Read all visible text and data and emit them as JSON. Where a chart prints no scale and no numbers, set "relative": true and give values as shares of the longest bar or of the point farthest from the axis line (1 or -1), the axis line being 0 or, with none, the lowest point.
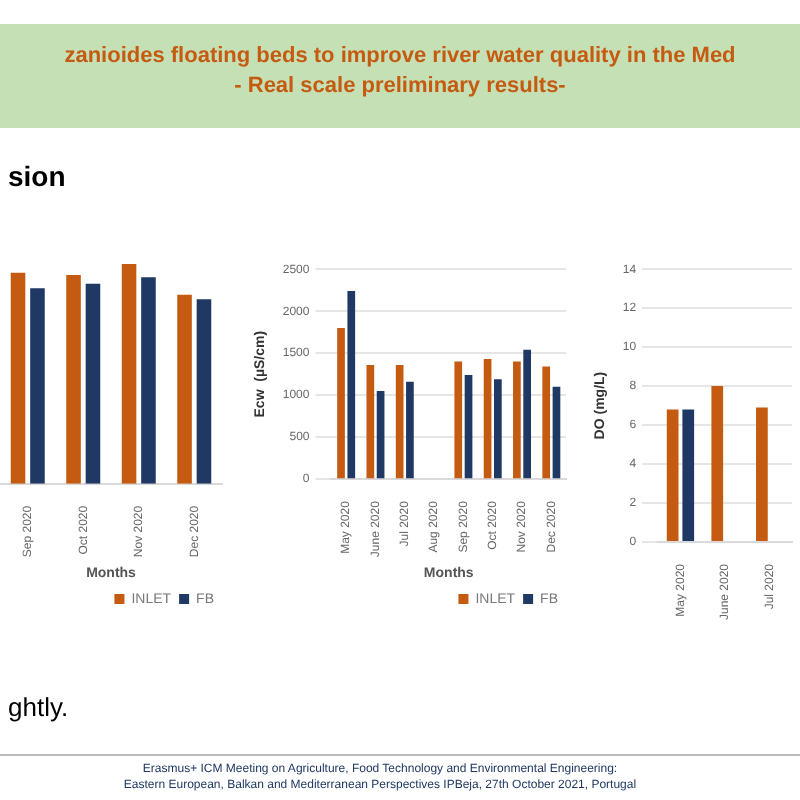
{
  "chart_data": [
    {
      "type": "bar",
      "xlabel": "Months",
      "relative": true,
      "legend": "bottom",
      "categories": [
        "Sep 2020",
        "Oct 2020",
        "Nov 2020",
        "Dec 2020"
      ],
      "series": [
        {
          "name": "INLET",
          "color": "#c55a11",
          "values": [
            0.96,
            0.95,
            1,
            0.86
          ]
        },
        {
          "name": "FB",
          "color": "#1f3864",
          "values": [
            0.89,
            0.91,
            0.94,
            0.84
          ]
        }
      ],
      "annotations": [
        "sion",
        "ghtly."
      ]
    },
    {
      "type": "bar",
      "title": "zanioides floating beds to improve river water quality in the Med",
      "subtitle": "- Real scale preliminary results-",
      "xlabel": "Months",
      "ylabel": "Ecw  (µS/cm)",
      "ylim": [
        0,
        2500
      ],
      "yticks": [
        0,
        500,
        1000,
        1500,
        2000,
        2500
      ],
      "grid": "y",
      "legend": "bottom",
      "categories": [
        "May 2020",
        "June 2020",
        "Jul 2020",
        "Aug 2020",
        "Sep 2020",
        "Oct 2020",
        "Nov 2020",
        "Dec 2020"
      ],
      "series": [
        {
          "name": "INLET",
          "color": "#c55a11",
          "values": [
            1800,
            1360,
            1360,
            null,
            1400,
            1430,
            1400,
            1340
          ]
        },
        {
          "name": "FB",
          "color": "#1f3864",
          "values": [
            2240,
            1050,
            1160,
            null,
            1240,
            1190,
            1540,
            1100
          ]
        }
      ],
      "annotations": [
        "Erasmus+ ICM Meeting on Agriculture, Food Technology and Environmental Engineering:",
        "Eastern European, Balkan and Mediterranean Perspectives     IPBeja, 27th October 2021, Portugal"
      ]
    },
    {
      "type": "bar",
      "ylabel": "DO (mg/L)",
      "ylim": [
        0,
        14
      ],
      "yticks": [
        0,
        2,
        4,
        6,
        8,
        10,
        12,
        14
      ],
      "grid": "y",
      "categories": [
        "May 2020",
        "June 2020",
        "Jul 2020"
      ],
      "series": [
        {
          "color": "#c55a11",
          "values": [
            6.8,
            8.0,
            6.9
          ]
        },
        {
          "color": "#1f3864",
          "values": [
            6.8,
            null,
            null
          ]
        }
      ]
    }
  ]
}
